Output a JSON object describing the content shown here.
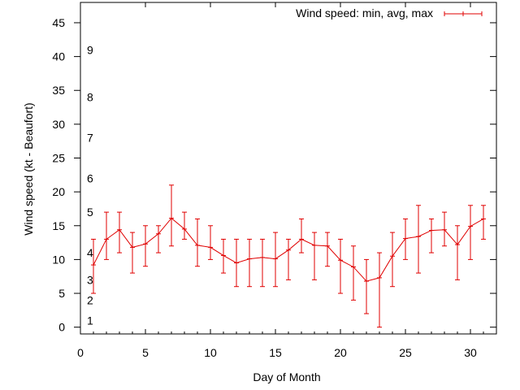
{
  "chart_data": {
    "type": "line",
    "title": "",
    "xlabel": "Day of Month",
    "ylabel": "Wind speed (kt - Beaufort)",
    "xlim": [
      0,
      32
    ],
    "ylim": [
      -1,
      48
    ],
    "x_ticks": [
      "0",
      "5",
      "10",
      "15",
      "20",
      "25",
      "30"
    ],
    "y_ticks": [
      "0",
      "5",
      "10",
      "15",
      "20",
      "25",
      "30",
      "35",
      "40",
      "45"
    ],
    "grid": false,
    "legend": {
      "position": "top-right",
      "entries": [
        "Wind speed: min, avg, max"
      ]
    },
    "beaufort_labels": [
      {
        "text": "1",
        "y": 1
      },
      {
        "text": "2",
        "y": 4
      },
      {
        "text": "3",
        "y": 7
      },
      {
        "text": "4",
        "y": 11
      },
      {
        "text": "5",
        "y": 17
      },
      {
        "text": "6",
        "y": 22
      },
      {
        "text": "7",
        "y": 28
      },
      {
        "text": "8",
        "y": 34
      },
      {
        "text": "9",
        "y": 41
      }
    ],
    "series": [
      {
        "name": "Wind speed: min, avg, max",
        "color": "#e00000",
        "x": [
          1,
          2,
          3,
          4,
          5,
          6,
          7,
          8,
          9,
          10,
          11,
          12,
          13,
          14,
          15,
          16,
          17,
          18,
          19,
          20,
          21,
          22,
          23,
          24,
          25,
          26,
          27,
          28,
          29,
          30,
          31
        ],
        "avg": [
          9.2,
          13.0,
          14.4,
          11.8,
          12.3,
          13.8,
          16.1,
          14.5,
          12.1,
          11.8,
          10.6,
          9.5,
          10.1,
          10.3,
          10.1,
          11.4,
          13.0,
          12.1,
          12.0,
          9.9,
          8.9,
          6.8,
          7.3,
          10.5,
          13.1,
          13.4,
          14.3,
          14.4,
          12.2,
          14.9,
          16.0
        ],
        "min": [
          5,
          10,
          11,
          8,
          9,
          11,
          12,
          13,
          9,
          10,
          8,
          6,
          6,
          6,
          6,
          7,
          11,
          7,
          9,
          5,
          4,
          2,
          0,
          6,
          10,
          8,
          11,
          12,
          7,
          10,
          13
        ],
        "max": [
          13,
          17,
          17,
          14,
          15,
          15,
          21,
          17,
          16,
          15,
          13,
          13,
          13,
          13,
          14,
          13,
          16,
          14,
          14,
          13,
          12,
          10,
          11,
          14,
          16,
          18,
          16,
          17,
          15,
          18,
          18
        ]
      }
    ]
  }
}
